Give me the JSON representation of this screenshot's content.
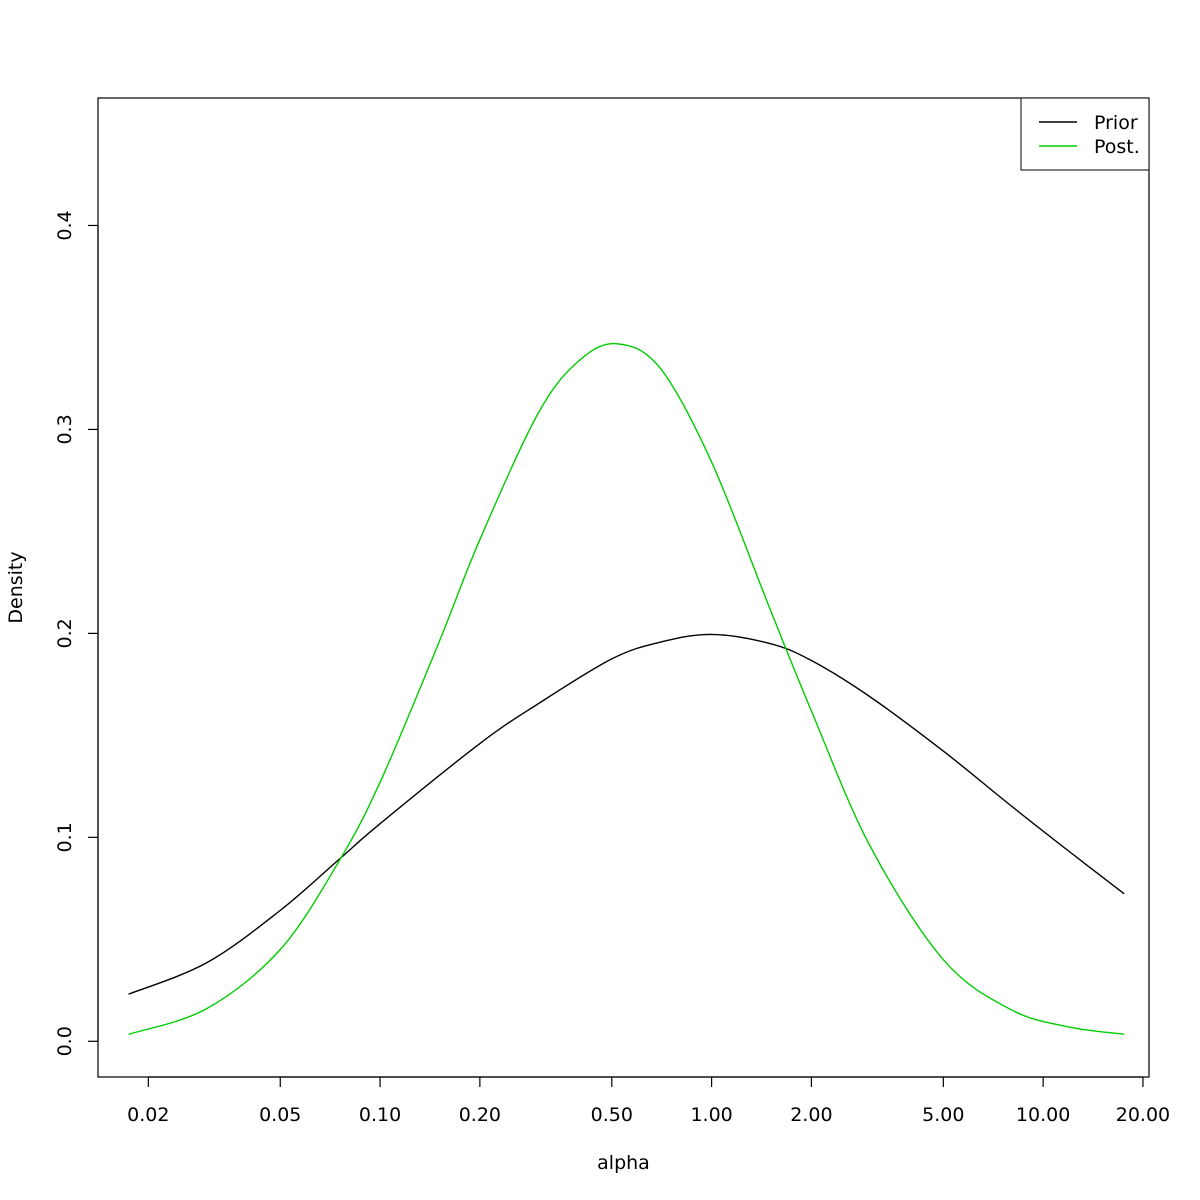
{
  "chart_data": {
    "type": "line",
    "title": "",
    "xlabel": "alpha",
    "ylabel": "Density",
    "x_scale": "log",
    "xlim": [
      0.0141,
      20.86
    ],
    "ylim": [
      -0.0175,
      0.4625
    ],
    "x_ticks": [
      0.02,
      0.05,
      0.1,
      0.2,
      0.5,
      1,
      2,
      5,
      10,
      20
    ],
    "x_tick_labels": [
      "0.02",
      "0.05",
      "0.10",
      "0.20",
      "0.50",
      "1.00",
      "2.00",
      "5.00",
      "10.00",
      "20.00"
    ],
    "y_ticks": [
      0,
      0.1,
      0.2,
      0.3,
      0.4
    ],
    "y_tick_labels": [
      "0.0",
      "0.1",
      "0.2",
      "0.3",
      "0.4"
    ],
    "grid": false,
    "legend": {
      "position": "top-right"
    },
    "series": [
      {
        "name": "Prior",
        "color": "#000000",
        "x": [
          0.0175,
          0.03,
          0.05,
          0.075,
          0.1,
          0.2,
          0.3,
          0.5,
          0.7,
          1.0,
          1.5,
          2.0,
          3.0,
          5.0,
          8.0,
          12.0,
          17.5
        ],
        "values": [
          0.0232,
          0.0385,
          0.0642,
          0.089,
          0.1067,
          0.146,
          0.1655,
          0.1875,
          0.1957,
          0.1995,
          0.195,
          0.1867,
          0.169,
          0.1423,
          0.1155,
          0.093,
          0.0725
        ]
      },
      {
        "name": "Post.",
        "color": "#00cd00",
        "x": [
          0.0175,
          0.03,
          0.05,
          0.075,
          0.1,
          0.15,
          0.2,
          0.3,
          0.4,
          0.52,
          0.7,
          1.0,
          1.5,
          2.0,
          3.0,
          5.0,
          8.0,
          12.0,
          17.5
        ],
        "values": [
          0.0035,
          0.016,
          0.045,
          0.088,
          0.127,
          0.195,
          0.246,
          0.308,
          0.334,
          0.342,
          0.33,
          0.284,
          0.212,
          0.162,
          0.096,
          0.04,
          0.0155,
          0.007,
          0.0035
        ]
      }
    ]
  }
}
